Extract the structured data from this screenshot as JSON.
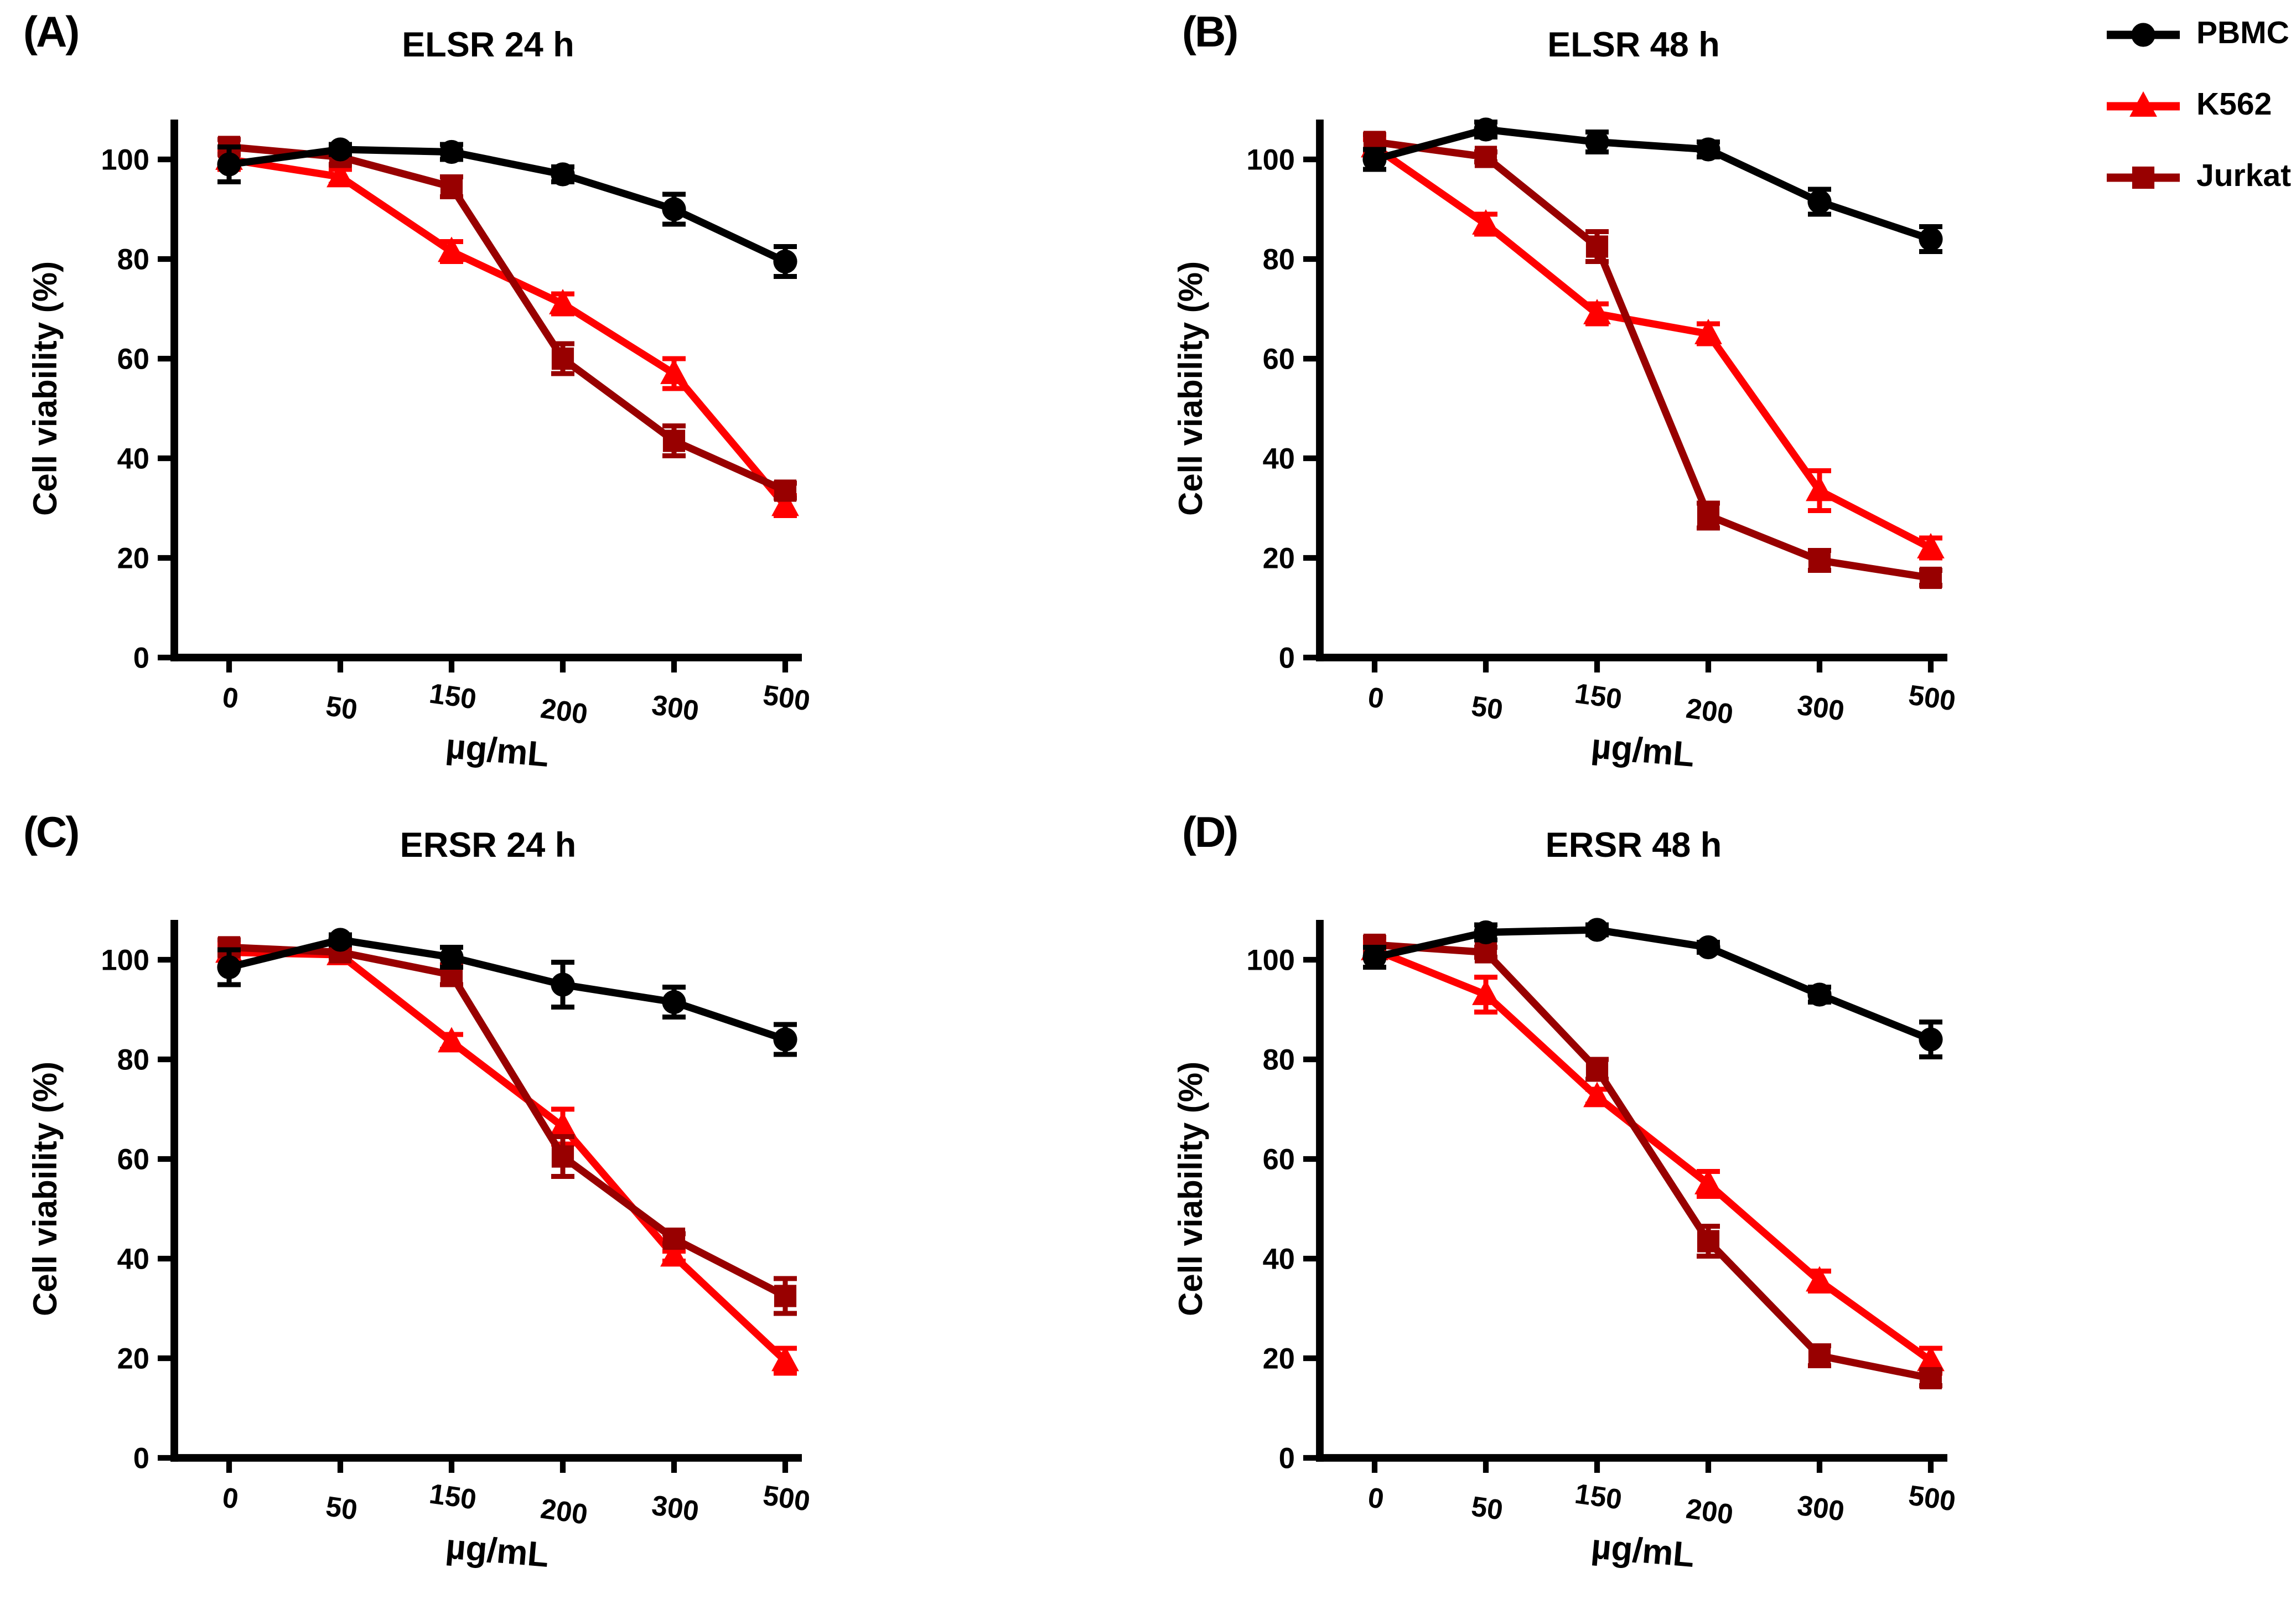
{
  "figure_title": "",
  "axes": {
    "xlabel": "µg/mL",
    "ylabel": "Cell viability (%)",
    "categories": [
      "0",
      "50",
      "150",
      "200",
      "300",
      "500"
    ],
    "yticks": [
      0,
      20,
      40,
      60,
      80,
      100
    ],
    "ylim": [
      0,
      110
    ],
    "grid": "off",
    "legend_position": "top-right-outside"
  },
  "legend": {
    "items": [
      {
        "label": "PBMC",
        "color": "#000000",
        "marker": "circle"
      },
      {
        "label": "K562",
        "color": "#ff0000",
        "marker": "triangle"
      },
      {
        "label": "Jurkat",
        "color": "#980000",
        "marker": "square"
      }
    ]
  },
  "chart_data": [
    {
      "type": "line",
      "panel_label": "(A)",
      "title": "ELSR 24 h",
      "xlabel": "µg/mL",
      "ylabel": "Cell viability (%)",
      "categories": [
        "0",
        "50",
        "150",
        "200",
        "300",
        "500"
      ],
      "yticks": [
        0,
        20,
        40,
        60,
        80,
        100
      ],
      "ylim": [
        0,
        110
      ],
      "series": [
        {
          "name": "PBMC",
          "color": "#000000",
          "marker": "circle",
          "values": [
            99,
            102,
            101.5,
            97,
            90,
            79.5
          ],
          "errors": [
            3.5,
            1,
            1.5,
            1.5,
            3,
            3
          ]
        },
        {
          "name": "K562",
          "color": "#ff0000",
          "marker": "triangle",
          "values": [
            100,
            96.5,
            81.5,
            71,
            57,
            30.5
          ],
          "errors": [
            2,
            1.5,
            2,
            2,
            3,
            2
          ]
        },
        {
          "name": "Jurkat",
          "color": "#980000",
          "marker": "square",
          "values": [
            102.5,
            100.5,
            94.5,
            60,
            43.5,
            33.5
          ],
          "errors": [
            1.5,
            1.5,
            2,
            3,
            3,
            1.5
          ]
        }
      ]
    },
    {
      "type": "line",
      "panel_label": "(B)",
      "title": "ELSR 48 h",
      "xlabel": "µg/mL",
      "ylabel": "Cell viability (%)",
      "categories": [
        "0",
        "50",
        "150",
        "200",
        "300",
        "500"
      ],
      "yticks": [
        0,
        20,
        40,
        60,
        80,
        100
      ],
      "ylim": [
        0,
        110
      ],
      "series": [
        {
          "name": "PBMC",
          "color": "#000000",
          "marker": "circle",
          "values": [
            100,
            106,
            103.5,
            102,
            91.5,
            84
          ],
          "errors": [
            2,
            1.5,
            2,
            1.5,
            2.5,
            2.5
          ]
        },
        {
          "name": "K562",
          "color": "#ff0000",
          "marker": "triangle",
          "values": [
            102.5,
            87,
            69,
            65,
            33.5,
            22
          ],
          "errors": [
            1.5,
            2,
            2,
            2,
            4,
            2
          ]
        },
        {
          "name": "Jurkat",
          "color": "#980000",
          "marker": "square",
          "values": [
            103.5,
            100.5,
            82.5,
            28.5,
            19.5,
            16
          ],
          "errors": [
            1.5,
            1,
            3,
            2.5,
            2,
            1.5
          ]
        }
      ]
    },
    {
      "type": "line",
      "panel_label": "(C)",
      "title": "ERSR 24 h",
      "xlabel": "µg/mL",
      "ylabel": "Cell viability (%)",
      "categories": [
        "0",
        "50",
        "150",
        "200",
        "300",
        "500"
      ],
      "yticks": [
        0,
        20,
        40,
        60,
        80,
        100
      ],
      "ylim": [
        0,
        110
      ],
      "series": [
        {
          "name": "PBMC",
          "color": "#000000",
          "marker": "circle",
          "values": [
            98.5,
            104,
            100.5,
            95,
            91.5,
            84
          ],
          "errors": [
            3.5,
            1,
            2,
            4.5,
            3,
            3
          ]
        },
        {
          "name": "K562",
          "color": "#ff0000",
          "marker": "triangle",
          "values": [
            101.5,
            101,
            83.5,
            66.5,
            40.5,
            19.5
          ],
          "errors": [
            1.5,
            1,
            1.5,
            3.5,
            1,
            2.5
          ]
        },
        {
          "name": "Jurkat",
          "color": "#980000",
          "marker": "square",
          "values": [
            102.5,
            101.5,
            97,
            60.5,
            44,
            32.5
          ],
          "errors": [
            1.5,
            1,
            2,
            4,
            1,
            3.5
          ]
        }
      ]
    },
    {
      "type": "line",
      "panel_label": "(D)",
      "title": "ERSR 48 h",
      "xlabel": "µg/mL",
      "ylabel": "Cell viability (%)",
      "categories": [
        "0",
        "50",
        "150",
        "200",
        "300",
        "500"
      ],
      "yticks": [
        0,
        20,
        40,
        60,
        80,
        100
      ],
      "ylim": [
        0,
        110
      ],
      "series": [
        {
          "name": "PBMC",
          "color": "#000000",
          "marker": "circle",
          "values": [
            100.5,
            105.5,
            106,
            102.5,
            93,
            84
          ],
          "errors": [
            2,
            1.5,
            1,
            1,
            1.5,
            3.5
          ]
        },
        {
          "name": "K562",
          "color": "#ff0000",
          "marker": "triangle",
          "values": [
            102,
            93,
            72.5,
            55,
            35.5,
            19.5
          ],
          "errors": [
            1.5,
            3.5,
            1.5,
            2.5,
            2,
            2.5
          ]
        },
        {
          "name": "Jurkat",
          "color": "#980000",
          "marker": "square",
          "values": [
            103,
            101.5,
            78,
            43.5,
            20.5,
            16
          ],
          "errors": [
            1.5,
            1,
            2,
            3,
            2,
            1.5
          ]
        }
      ]
    }
  ]
}
